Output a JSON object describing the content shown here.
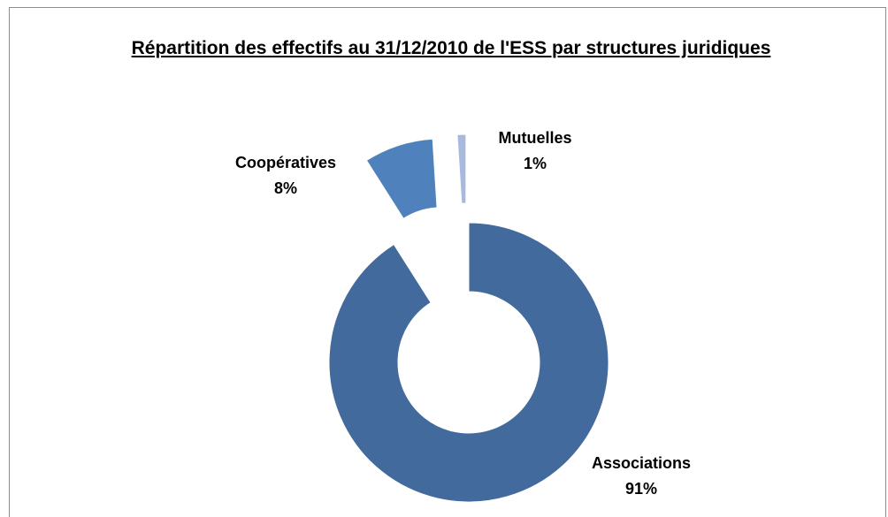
{
  "chart_data": {
    "type": "donut",
    "title": "Répartition des effectifs au 31/12/2010 de l'ESS par structures juridiques",
    "categories": [
      "Associations",
      "Coopératives",
      "Mutuelles"
    ],
    "values": [
      91,
      8,
      1
    ],
    "value_labels": [
      "91%",
      "8%",
      "1%"
    ],
    "colors": [
      "#426a9c",
      "#4f81bd",
      "#a7b9dc"
    ]
  }
}
